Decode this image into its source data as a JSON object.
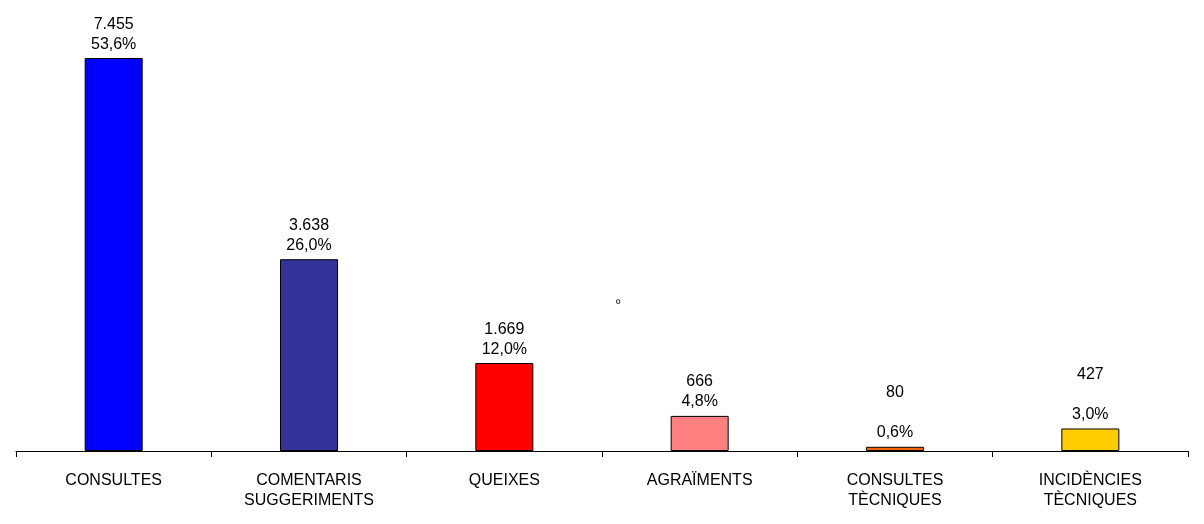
{
  "chart_data": {
    "type": "bar",
    "categories": [
      "CONSULTES",
      "COMENTARIS\nSUGGERIMENTS",
      "QUEIXES",
      "AGRAÏMENTS",
      "CONSULTES\nTÈCNIQUES",
      "INCIDÈNCIES\nTÈCNIQUES"
    ],
    "values": [
      7455,
      3638,
      1669,
      666,
      80,
      427
    ],
    "colors": [
      "#0000ff",
      "#333399",
      "#ff0000",
      "#ff8080",
      "#ff6600",
      "#ffcc00"
    ],
    "value_labels": [
      "7.455\n53,6%",
      "3.638\n26,0%",
      "1.669\n12,0%",
      "666\n4,8%",
      "80\n\n0,6%",
      "427\n\n3,0%"
    ],
    "annotations": [
      "º"
    ]
  }
}
